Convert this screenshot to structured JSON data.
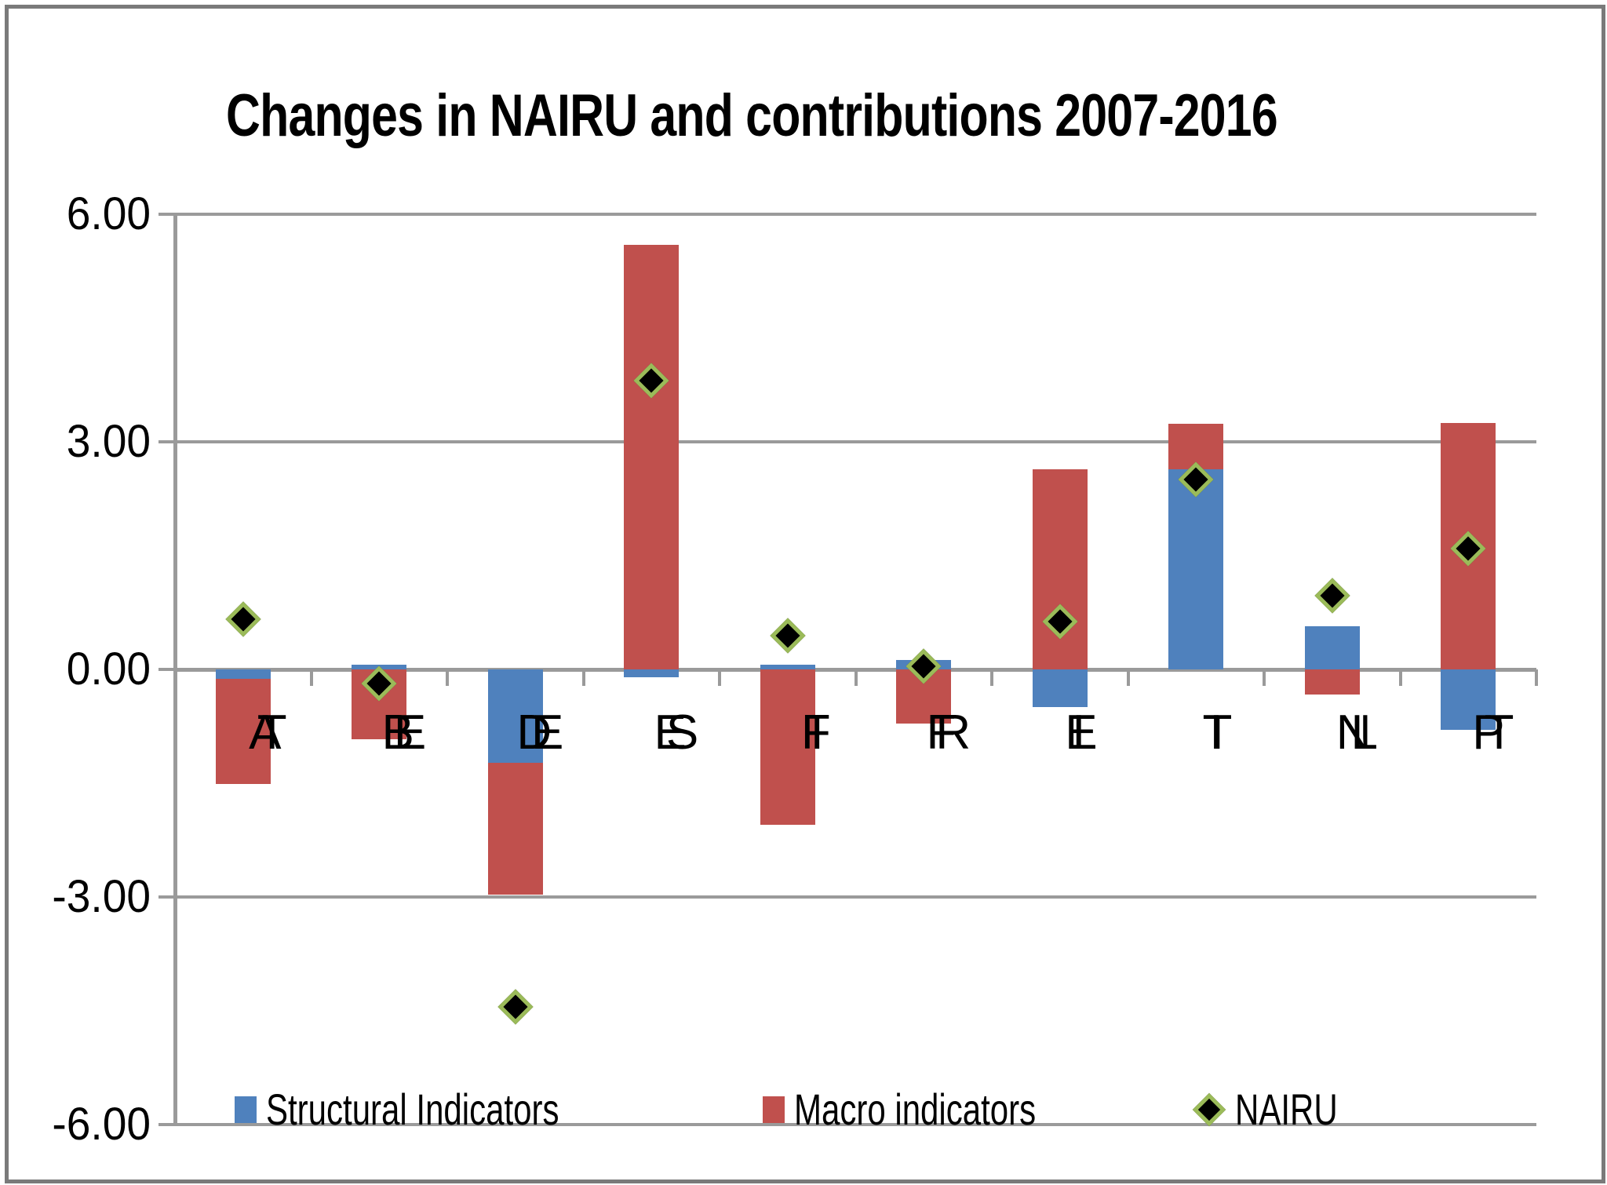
{
  "title": "Changes in NAIRU and contributions 2007-2016",
  "chart_data": {
    "type": "bar",
    "subtype": "stacked-bars-with-diamond-markers",
    "title": "Changes in NAIRU and contributions 2007-2016",
    "categories": [
      "AT",
      "BE",
      "DE",
      "ES",
      "FI",
      "FR",
      "IE",
      "IT",
      "NL",
      "PT"
    ],
    "series": [
      {
        "name": "Structural Indicators",
        "render": "bar",
        "color": "#4f81bd",
        "values": [
          -0.12,
          0.06,
          -1.23,
          -0.1,
          0.06,
          0.12,
          -0.5,
          2.64,
          0.57,
          -0.8
        ]
      },
      {
        "name": "Macro indicators",
        "render": "bar",
        "color": "#c0504d",
        "values": [
          -1.39,
          -0.92,
          -1.74,
          5.6,
          -2.05,
          -0.71,
          2.64,
          0.6,
          -0.33,
          3.25
        ]
      },
      {
        "name": "NAIRU",
        "render": "marker",
        "color": "#000000",
        "marker_border": "#9bbb59",
        "values": [
          0.66,
          -0.19,
          -4.45,
          3.81,
          0.44,
          0.04,
          0.63,
          2.5,
          0.97,
          1.59
        ]
      }
    ],
    "ylim": [
      -6,
      6
    ],
    "yticks": [
      6,
      3,
      0,
      -3,
      -6
    ],
    "ytick_labels": [
      "6.00",
      "3.00",
      "0.00",
      "-3.00",
      "-6.00"
    ],
    "xlabel": "",
    "ylabel": "",
    "grid": true,
    "legend_position": "bottom"
  },
  "legend": {
    "items": [
      {
        "label": "Structural Indicators",
        "color": "#4f81bd",
        "shape": "square"
      },
      {
        "label": "Macro indicators",
        "color": "#c0504d",
        "shape": "square"
      },
      {
        "label": "NAIRU",
        "color": "#000000",
        "border": "#9bbb59",
        "shape": "diamond"
      }
    ]
  },
  "colors": {
    "structural_blue": "#4f81bd",
    "macro_red": "#c0504d",
    "marker_green": "#9bbb59",
    "marker_black": "#000000",
    "gridline_gray": "#9a9a9a",
    "frame_gray": "#7a7a7a",
    "background": "#ffffff"
  }
}
